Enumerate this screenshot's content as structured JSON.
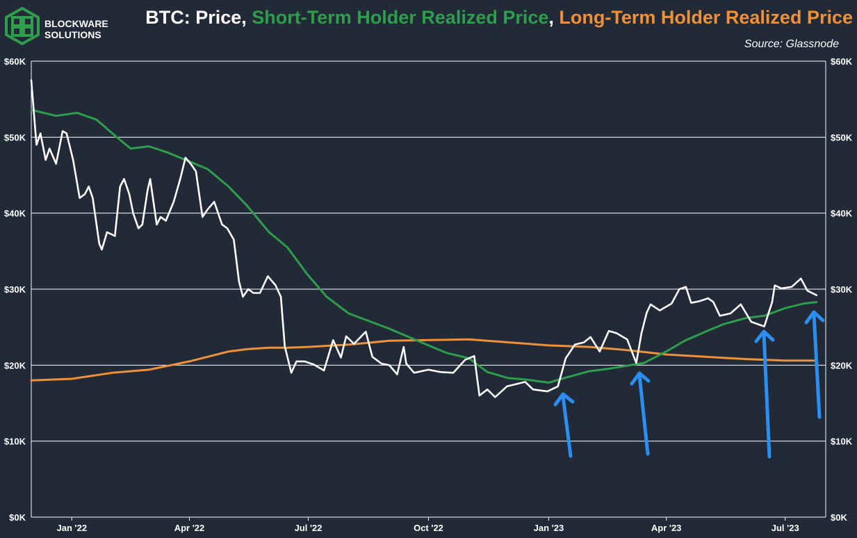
{
  "brand": {
    "name_line1": "BLOCKWARE",
    "name_line2": "SOLUTIONS",
    "logo_color": "#2e9e4c"
  },
  "colors": {
    "background": "#212a36",
    "price": "#ffffff",
    "sth": "#2e9e4c",
    "lth": "#f0913a",
    "arrow": "#2a8ff0",
    "grid": "#ffffff"
  },
  "chart_data": {
    "type": "line",
    "title": {
      "prefix": "BTC: Price",
      "sep1": ", ",
      "sth": "Short-Term Holder Realized Price",
      "sep2": ", ",
      "lth": "Long-Term Holder Realized Price"
    },
    "source": "Source: Glassnode",
    "x_range": [
      "2021-12-01",
      "2023-08-01"
    ],
    "ylim": [
      0,
      60000
    ],
    "y_ticks": [
      {
        "value": 0,
        "label": "$0K"
      },
      {
        "value": 10000,
        "label": "$10K"
      },
      {
        "value": 20000,
        "label": "$20K"
      },
      {
        "value": 30000,
        "label": "$30K"
      },
      {
        "value": 40000,
        "label": "$40K"
      },
      {
        "value": 50000,
        "label": "$50K"
      },
      {
        "value": 60000,
        "label": "$60K"
      }
    ],
    "x_ticks": [
      {
        "date": "2022-01-01",
        "label": "Jan '22"
      },
      {
        "date": "2022-04-01",
        "label": "Apr '22"
      },
      {
        "date": "2022-07-01",
        "label": "Jul '22"
      },
      {
        "date": "2022-10-01",
        "label": "Oct '22"
      },
      {
        "date": "2023-01-01",
        "label": "Jan '23"
      },
      {
        "date": "2023-04-01",
        "label": "Apr '23"
      },
      {
        "date": "2023-07-01",
        "label": "Jul '23"
      }
    ],
    "grid": "horizontal",
    "series": [
      {
        "key": "price",
        "color": "#ffffff",
        "points": [
          [
            "2021-12-01",
            57500
          ],
          [
            "2021-12-05",
            49000
          ],
          [
            "2021-12-08",
            50500
          ],
          [
            "2021-12-12",
            47000
          ],
          [
            "2021-12-15",
            48500
          ],
          [
            "2021-12-20",
            46500
          ],
          [
            "2021-12-25",
            50800
          ],
          [
            "2021-12-28",
            50500
          ],
          [
            "2022-01-02",
            47000
          ],
          [
            "2022-01-07",
            42000
          ],
          [
            "2022-01-11",
            42500
          ],
          [
            "2022-01-14",
            43500
          ],
          [
            "2022-01-17",
            42000
          ],
          [
            "2022-01-22",
            36000
          ],
          [
            "2022-01-24",
            35200
          ],
          [
            "2022-01-28",
            37500
          ],
          [
            "2022-02-03",
            37000
          ],
          [
            "2022-02-07",
            43500
          ],
          [
            "2022-02-10",
            44500
          ],
          [
            "2022-02-14",
            42500
          ],
          [
            "2022-02-17",
            40000
          ],
          [
            "2022-02-21",
            38000
          ],
          [
            "2022-02-24",
            38500
          ],
          [
            "2022-02-28",
            43000
          ],
          [
            "2022-03-02",
            44500
          ],
          [
            "2022-03-07",
            38500
          ],
          [
            "2022-03-10",
            39500
          ],
          [
            "2022-03-14",
            39000
          ],
          [
            "2022-03-20",
            41500
          ],
          [
            "2022-03-25",
            44500
          ],
          [
            "2022-03-29",
            47300
          ],
          [
            "2022-04-02",
            46500
          ],
          [
            "2022-04-06",
            45500
          ],
          [
            "2022-04-11",
            39500
          ],
          [
            "2022-04-15",
            40500
          ],
          [
            "2022-04-20",
            41500
          ],
          [
            "2022-04-26",
            38500
          ],
          [
            "2022-04-30",
            38000
          ],
          [
            "2022-05-05",
            36500
          ],
          [
            "2022-05-09",
            31000
          ],
          [
            "2022-05-12",
            29000
          ],
          [
            "2022-05-16",
            30000
          ],
          [
            "2022-05-20",
            29500
          ],
          [
            "2022-05-25",
            29500
          ],
          [
            "2022-05-31",
            31700
          ],
          [
            "2022-06-06",
            30500
          ],
          [
            "2022-06-10",
            29000
          ],
          [
            "2022-06-13",
            22500
          ],
          [
            "2022-06-18",
            19000
          ],
          [
            "2022-06-22",
            20500
          ],
          [
            "2022-06-28",
            20500
          ],
          [
            "2022-07-05",
            20100
          ],
          [
            "2022-07-13",
            19300
          ],
          [
            "2022-07-20",
            23300
          ],
          [
            "2022-07-26",
            21000
          ],
          [
            "2022-07-30",
            23800
          ],
          [
            "2022-08-05",
            22800
          ],
          [
            "2022-08-14",
            24400
          ],
          [
            "2022-08-19",
            21100
          ],
          [
            "2022-08-26",
            20200
          ],
          [
            "2022-09-01",
            20000
          ],
          [
            "2022-09-07",
            18800
          ],
          [
            "2022-09-12",
            22400
          ],
          [
            "2022-09-14",
            20200
          ],
          [
            "2022-09-20",
            19000
          ],
          [
            "2022-10-01",
            19400
          ],
          [
            "2022-10-10",
            19100
          ],
          [
            "2022-10-20",
            19000
          ],
          [
            "2022-10-29",
            20700
          ],
          [
            "2022-11-05",
            21200
          ],
          [
            "2022-11-09",
            16000
          ],
          [
            "2022-11-15",
            16800
          ],
          [
            "2022-11-21",
            15800
          ],
          [
            "2022-11-30",
            17200
          ],
          [
            "2022-12-14",
            17800
          ],
          [
            "2022-12-20",
            16800
          ],
          [
            "2022-12-31",
            16550
          ],
          [
            "2023-01-08",
            17200
          ],
          [
            "2023-01-14",
            20900
          ],
          [
            "2023-01-21",
            22700
          ],
          [
            "2023-01-28",
            23000
          ],
          [
            "2023-02-02",
            23700
          ],
          [
            "2023-02-09",
            21800
          ],
          [
            "2023-02-16",
            24500
          ],
          [
            "2023-02-22",
            24200
          ],
          [
            "2023-03-02",
            23400
          ],
          [
            "2023-03-09",
            20300
          ],
          [
            "2023-03-13",
            24200
          ],
          [
            "2023-03-17",
            26900
          ],
          [
            "2023-03-20",
            28000
          ],
          [
            "2023-03-27",
            27200
          ],
          [
            "2023-04-05",
            28100
          ],
          [
            "2023-04-11",
            30000
          ],
          [
            "2023-04-16",
            30300
          ],
          [
            "2023-04-20",
            28200
          ],
          [
            "2023-04-26",
            28400
          ],
          [
            "2023-05-03",
            28800
          ],
          [
            "2023-05-07",
            28300
          ],
          [
            "2023-05-12",
            26500
          ],
          [
            "2023-05-20",
            26800
          ],
          [
            "2023-05-28",
            28000
          ],
          [
            "2023-06-05",
            25700
          ],
          [
            "2023-06-15",
            25100
          ],
          [
            "2023-06-21",
            28300
          ],
          [
            "2023-06-23",
            30500
          ],
          [
            "2023-06-28",
            30100
          ],
          [
            "2023-07-06",
            30300
          ],
          [
            "2023-07-13",
            31400
          ],
          [
            "2023-07-18",
            29800
          ],
          [
            "2023-07-25",
            29200
          ]
        ]
      },
      {
        "key": "sth",
        "color": "#2e9e4c",
        "points": [
          [
            "2021-12-01",
            53600
          ],
          [
            "2021-12-20",
            52800
          ],
          [
            "2022-01-05",
            53200
          ],
          [
            "2022-01-20",
            52300
          ],
          [
            "2022-02-01",
            50500
          ],
          [
            "2022-02-15",
            48500
          ],
          [
            "2022-03-01",
            48800
          ],
          [
            "2022-03-15",
            48000
          ],
          [
            "2022-04-01",
            46800
          ],
          [
            "2022-04-15",
            45800
          ],
          [
            "2022-05-01",
            43500
          ],
          [
            "2022-05-15",
            41000
          ],
          [
            "2022-06-01",
            37500
          ],
          [
            "2022-06-15",
            35500
          ],
          [
            "2022-06-30",
            32000
          ],
          [
            "2022-07-15",
            29000
          ],
          [
            "2022-08-01",
            26800
          ],
          [
            "2022-09-01",
            24800
          ],
          [
            "2022-10-01",
            22600
          ],
          [
            "2022-10-15",
            21600
          ],
          [
            "2022-11-01",
            20900
          ],
          [
            "2022-11-15",
            19100
          ],
          [
            "2022-12-01",
            18300
          ],
          [
            "2022-12-15",
            18100
          ],
          [
            "2023-01-01",
            17700
          ],
          [
            "2023-01-15",
            18400
          ],
          [
            "2023-02-01",
            19200
          ],
          [
            "2023-02-15",
            19500
          ],
          [
            "2023-03-01",
            19900
          ],
          [
            "2023-03-15",
            20300
          ],
          [
            "2023-04-01",
            21800
          ],
          [
            "2023-04-15",
            23200
          ],
          [
            "2023-05-01",
            24400
          ],
          [
            "2023-05-15",
            25400
          ],
          [
            "2023-06-01",
            26200
          ],
          [
            "2023-06-15",
            26500
          ],
          [
            "2023-07-01",
            27500
          ],
          [
            "2023-07-15",
            28100
          ],
          [
            "2023-07-25",
            28300
          ]
        ]
      },
      {
        "key": "lth",
        "color": "#f0913a",
        "points": [
          [
            "2021-12-01",
            18000
          ],
          [
            "2022-01-01",
            18200
          ],
          [
            "2022-02-01",
            19000
          ],
          [
            "2022-03-01",
            19400
          ],
          [
            "2022-04-01",
            20500
          ],
          [
            "2022-04-15",
            21100
          ],
          [
            "2022-05-01",
            21800
          ],
          [
            "2022-05-15",
            22100
          ],
          [
            "2022-06-01",
            22300
          ],
          [
            "2022-06-15",
            22300
          ],
          [
            "2022-07-01",
            22400
          ],
          [
            "2022-08-01",
            22700
          ],
          [
            "2022-09-01",
            23200
          ],
          [
            "2022-10-01",
            23300
          ],
          [
            "2022-11-01",
            23400
          ],
          [
            "2022-12-01",
            23000
          ],
          [
            "2023-01-01",
            22600
          ],
          [
            "2023-02-01",
            22400
          ],
          [
            "2023-03-01",
            22000
          ],
          [
            "2023-04-01",
            21400
          ],
          [
            "2023-05-01",
            21100
          ],
          [
            "2023-06-01",
            20800
          ],
          [
            "2023-07-01",
            20600
          ],
          [
            "2023-07-25",
            20600
          ]
        ]
      }
    ]
  }
}
